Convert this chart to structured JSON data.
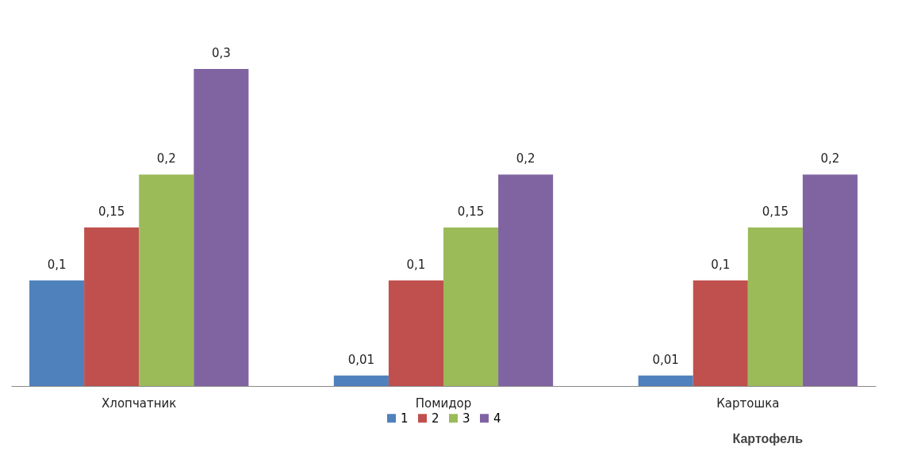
{
  "chart_data": {
    "type": "bar",
    "categories": [
      "Хлопчатник",
      "Помидор",
      "Картошка"
    ],
    "series": [
      {
        "name": "1",
        "color": "#4f81bd",
        "values": [
          0.1,
          0.01,
          0.01
        ],
        "value_labels": [
          "0,1",
          "0,01",
          "0,01"
        ]
      },
      {
        "name": "2",
        "color": "#c0504d",
        "values": [
          0.15,
          0.1,
          0.1
        ],
        "value_labels": [
          "0,15",
          "0,1",
          "0,1"
        ]
      },
      {
        "name": "3",
        "color": "#9bbb59",
        "values": [
          0.2,
          0.15,
          0.15
        ],
        "value_labels": [
          "0,2",
          "0,15",
          "0,15"
        ]
      },
      {
        "name": "4",
        "color": "#8064a2",
        "values": [
          0.3,
          0.2,
          0.2
        ],
        "value_labels": [
          "0,3",
          "0,2",
          "0,2"
        ]
      }
    ],
    "legend": "bottom",
    "grid": false,
    "annotations": [
      "Картофель"
    ]
  }
}
